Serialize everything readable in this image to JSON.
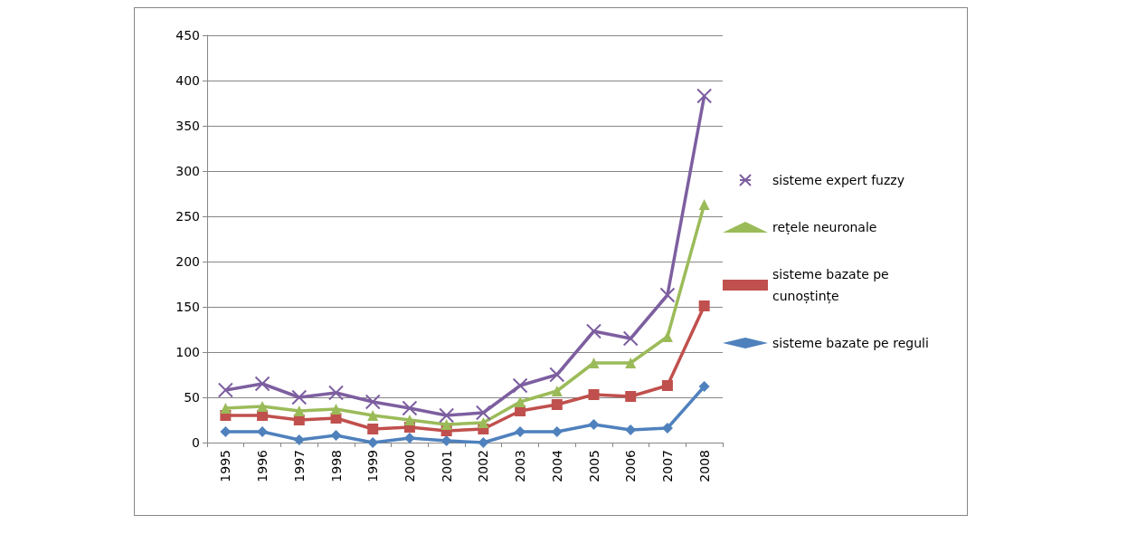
{
  "chart_data": {
    "type": "line",
    "categories": [
      "1995",
      "1996",
      "1997",
      "1998",
      "1999",
      "2000",
      "2001",
      "2002",
      "2003",
      "2004",
      "2005",
      "2006",
      "2007",
      "2008"
    ],
    "series": [
      {
        "name": "sisteme expert fuzzy",
        "color": "#7d5fa0",
        "marker": "cross",
        "values": [
          58,
          65,
          50,
          55,
          45,
          38,
          30,
          33,
          63,
          75,
          123,
          115,
          163,
          383
        ]
      },
      {
        "name": "rețele neuronale",
        "color": "#9bbb59",
        "marker": "triangle",
        "values": [
          38,
          40,
          35,
          37,
          30,
          25,
          20,
          22,
          45,
          57,
          88,
          88,
          117,
          263
        ]
      },
      {
        "name": "sisteme bazate pe cunoștințe",
        "color": "#c0504d",
        "marker": "square",
        "values": [
          30,
          30,
          25,
          27,
          15,
          17,
          13,
          15,
          35,
          42,
          53,
          51,
          63,
          151
        ]
      },
      {
        "name": "sisteme bazate pe reguli",
        "color": "#4f81bd",
        "marker": "diamond",
        "values": [
          12,
          12,
          3,
          8,
          0,
          5,
          2,
          0,
          12,
          12,
          20,
          14,
          16,
          62
        ]
      }
    ],
    "ylim": [
      0,
      450
    ],
    "yticks": [
      0,
      50,
      100,
      150,
      200,
      250,
      300,
      350,
      400,
      450
    ],
    "grid": "y",
    "legend": "right"
  }
}
